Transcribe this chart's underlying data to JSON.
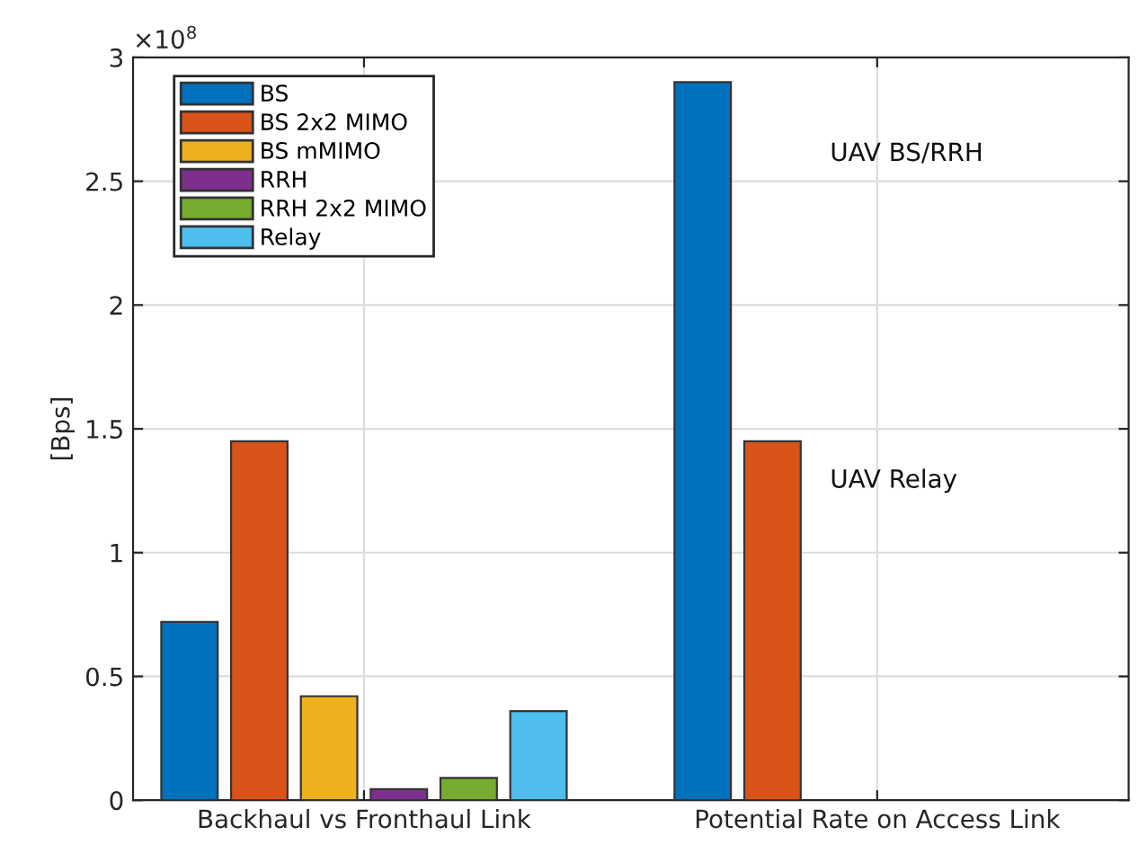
{
  "chart_data": {
    "type": "bar",
    "categories": [
      "Backhaul vs Fronthaul Link",
      "Potential Rate on Access Link"
    ],
    "ylabel": "[Bps]",
    "series": [
      {
        "name": "BS",
        "color": "#0072bd",
        "values": [
          0.72,
          2.9
        ]
      },
      {
        "name": "BS 2x2 MIMO",
        "color": "#d95319",
        "values": [
          1.45,
          1.45
        ]
      },
      {
        "name": "BS mMIMO",
        "color": "#edb120",
        "values": [
          0.42,
          null
        ]
      },
      {
        "name": "RRH",
        "color": "#7e2f8e",
        "values": [
          0.045,
          null
        ]
      },
      {
        "name": "RRH 2x2 MIMO",
        "color": "#77ac30",
        "values": [
          0.09,
          null
        ]
      },
      {
        "name": "Relay",
        "color": "#4dbeee",
        "values": [
          0.36,
          null
        ]
      }
    ],
    "ylim": [
      0,
      3
    ],
    "yticks": [
      0,
      0.5,
      1,
      1.5,
      2,
      2.5,
      3
    ],
    "annotations": [
      "×10$^{8}$",
      "UAV BS/RRH",
      "UAV Relay"
    ],
    "grid": true,
    "legend": "top left"
  }
}
